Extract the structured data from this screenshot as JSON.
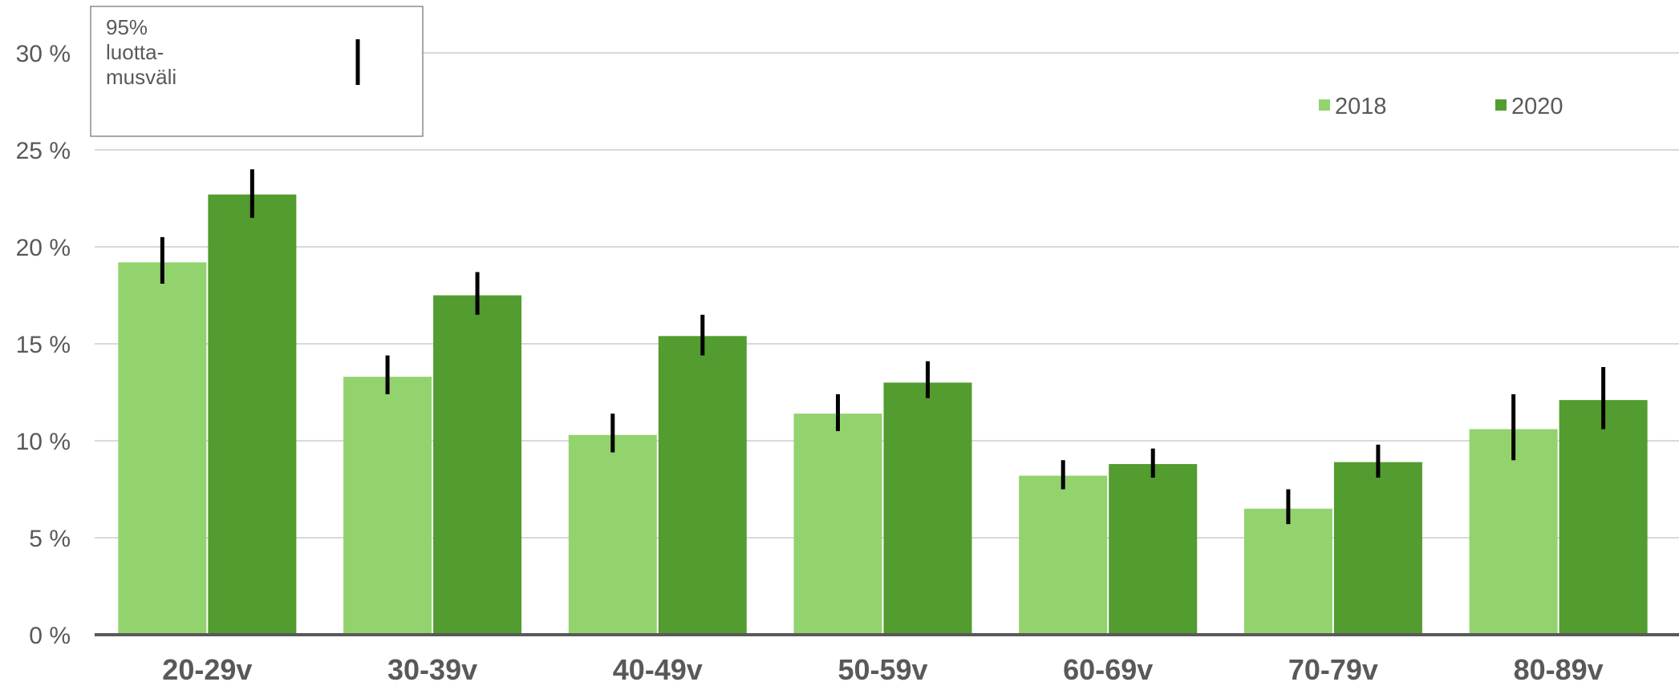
{
  "chart_data": {
    "type": "bar",
    "categories": [
      "20-29v",
      "30-39v",
      "40-49v",
      "50-59v",
      "60-69v",
      "70-79v",
      "80-89v"
    ],
    "series": [
      {
        "name": "2018",
        "color": "#92d36e",
        "values": [
          19.2,
          13.3,
          10.3,
          11.4,
          8.2,
          6.5,
          10.6
        ],
        "ci_low": [
          18.1,
          12.4,
          9.4,
          10.5,
          7.5,
          5.7,
          9.0
        ],
        "ci_high": [
          20.5,
          14.4,
          11.4,
          12.4,
          9.0,
          7.5,
          12.4
        ]
      },
      {
        "name": "2020",
        "color": "#529c30",
        "values": [
          22.7,
          17.5,
          15.4,
          13.0,
          8.8,
          8.9,
          12.1
        ],
        "ci_low": [
          21.5,
          16.5,
          14.4,
          12.2,
          8.1,
          8.1,
          10.6
        ],
        "ci_high": [
          24.0,
          18.7,
          16.5,
          14.1,
          9.6,
          9.8,
          13.8
        ]
      }
    ],
    "yticks": [
      "0 %",
      "5 %",
      "10 %",
      "15 %",
      "20 %",
      "25 %",
      "30 %"
    ],
    "ylim": [
      0,
      30
    ],
    "grid": true,
    "legend_position": "top-right",
    "ci_legend": {
      "lines": [
        "95%",
        "luotta-",
        "musväli"
      ]
    }
  }
}
